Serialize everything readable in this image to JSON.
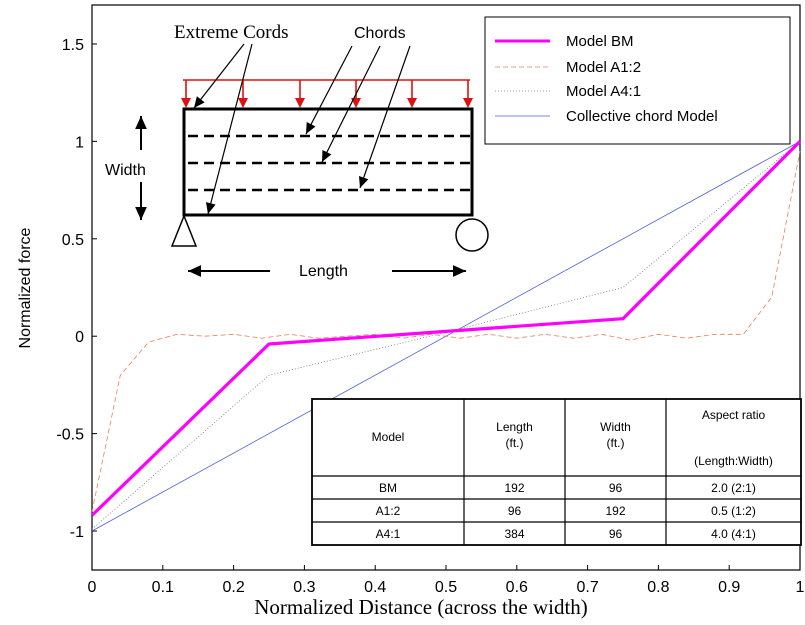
{
  "chart_data": {
    "type": "line",
    "title": "",
    "xlabel": "Normalized Distance (across the width)",
    "ylabel": "Normalized force",
    "xlim": [
      0,
      1
    ],
    "ylim": [
      -1.2,
      1.7
    ],
    "x_ticks": [
      "0",
      "0.1",
      "0.2",
      "0.3",
      "0.4",
      "0.5",
      "0.6",
      "0.7",
      "0.8",
      "0.9",
      "1"
    ],
    "x_tick_values": [
      0,
      0.1,
      0.2,
      0.3,
      0.4,
      0.5,
      0.6,
      0.7,
      0.8,
      0.9,
      1.0
    ],
    "y_ticks": [
      "-1",
      "-0.5",
      "0",
      "0.5",
      "1",
      "1.5"
    ],
    "y_tick_values": [
      -1,
      -0.5,
      0,
      0.5,
      1,
      1.5
    ],
    "grid": false,
    "legend_position": "top-right",
    "series": [
      {
        "name": "Model BM",
        "color": "#ff00ff",
        "x": [
          0,
          0.25,
          0.75,
          1.0
        ],
        "y": [
          -0.92,
          -0.04,
          0.09,
          1.0
        ]
      },
      {
        "name": "Model A1:2",
        "color": "#e8805a",
        "x": [
          0,
          0.04,
          0.08,
          0.12,
          0.16,
          0.2,
          0.24,
          0.28,
          0.32,
          0.36,
          0.4,
          0.44,
          0.48,
          0.52,
          0.56,
          0.6,
          0.64,
          0.68,
          0.72,
          0.76,
          0.8,
          0.84,
          0.88,
          0.92,
          0.96,
          1.0
        ],
        "y": [
          -0.9,
          -0.2,
          -0.03,
          0.01,
          0.0,
          0.01,
          -0.01,
          0.01,
          -0.01,
          0.0,
          0.01,
          -0.01,
          0.01,
          -0.01,
          0.01,
          -0.01,
          0.01,
          -0.01,
          0.01,
          -0.02,
          0.01,
          -0.01,
          0.01,
          0.01,
          0.2,
          0.95
        ]
      },
      {
        "name": "Model A4:1",
        "color": "#777777",
        "x": [
          0,
          0.25,
          0.5,
          0.75,
          1.0
        ],
        "y": [
          -0.99,
          -0.2,
          0.02,
          0.25,
          1.0
        ]
      },
      {
        "name": "Collective chord Model",
        "color": "#4b5fd6",
        "x": [
          0,
          1.0
        ],
        "y": [
          -1.0,
          1.0
        ]
      }
    ],
    "annotations": {
      "extreme_cords": "Extreme Cords",
      "chords": "Chords",
      "width": "Width",
      "length": "Length"
    },
    "table": {
      "headers": [
        [
          "Model"
        ],
        [
          "Length",
          "(ft.)"
        ],
        [
          "Width",
          "(ft.)"
        ],
        [
          "Aspect ratio",
          "(Length:Width)"
        ]
      ],
      "rows": [
        [
          "BM",
          "192",
          "96",
          "2.0 (2:1)"
        ],
        [
          "A1:2",
          "96",
          "192",
          "0.5 (1:2)"
        ],
        [
          "A4:1",
          "384",
          "96",
          "4.0 (4:1)"
        ]
      ]
    }
  }
}
